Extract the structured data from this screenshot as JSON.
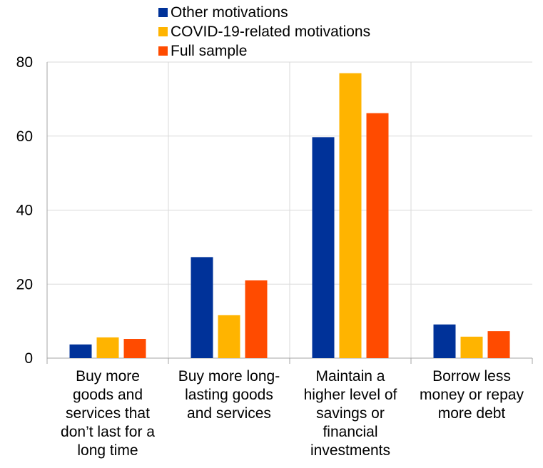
{
  "chart_data": {
    "type": "bar",
    "title": "",
    "xlabel": "",
    "ylabel": "",
    "ylim": [
      0,
      80
    ],
    "yticks": [
      0,
      20,
      40,
      60,
      80
    ],
    "grid": true,
    "legend_position": "top-center",
    "categories": [
      "Buy more goods and services that don’t last for a long time",
      "Buy more long-lasting goods and services",
      "Maintain a higher level of savings or financial investments",
      "Borrow less money or repay more debt"
    ],
    "category_lines": [
      [
        "Buy more",
        "goods and",
        "services that",
        "don’t last for a",
        "long time"
      ],
      [
        "Buy more long-",
        "lasting goods",
        "and services"
      ],
      [
        "Maintain a",
        "higher level of",
        "savings or",
        "financial",
        "investments"
      ],
      [
        "Borrow less",
        "money or repay",
        "more debt"
      ]
    ],
    "series": [
      {
        "name": "Other motivations",
        "color": "#003299",
        "values": [
          3.7,
          27.3,
          59.7,
          9.1
        ]
      },
      {
        "name": "COVID-19-related motivations",
        "color": "#FFB400",
        "values": [
          5.6,
          11.6,
          77.0,
          5.8
        ]
      },
      {
        "name": "Full sample",
        "color": "#FF4B00",
        "values": [
          5.2,
          21.0,
          66.2,
          7.3
        ]
      }
    ]
  }
}
